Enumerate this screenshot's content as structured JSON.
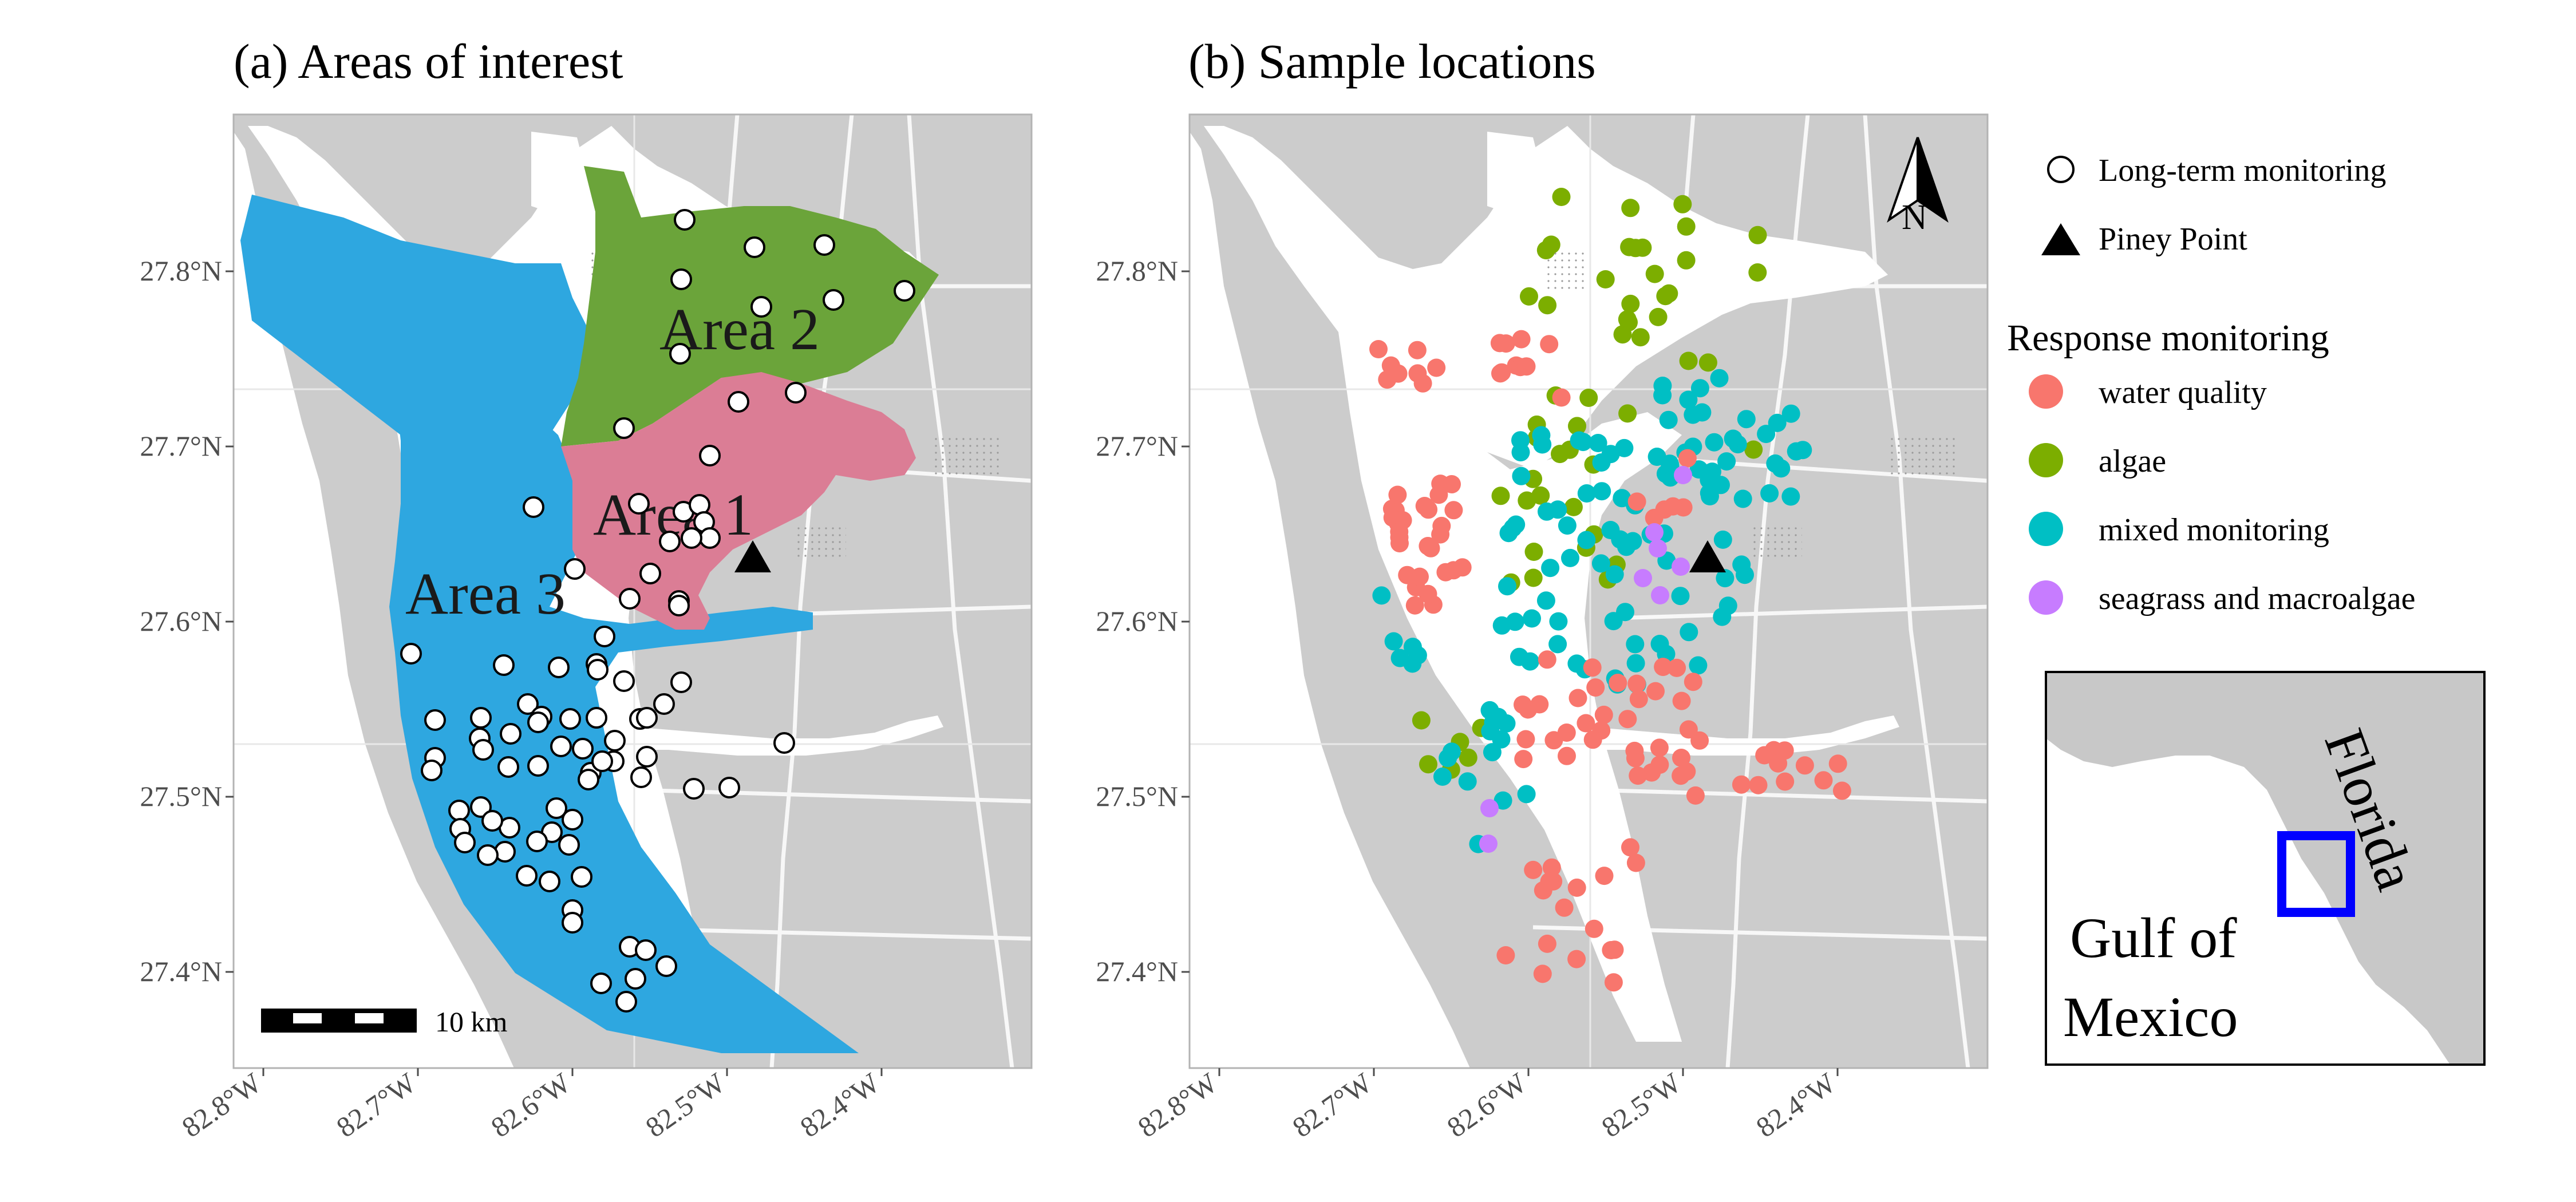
{
  "panels": {
    "a": {
      "title": "(a) Areas of interest"
    },
    "b": {
      "title": "(b) Sample locations"
    }
  },
  "axes": {
    "y_ticks": [
      "27.8°N",
      "27.7°N",
      "27.6°N",
      "27.5°N",
      "27.4°N"
    ],
    "x_ticks": [
      "82.8°W",
      "82.7°W",
      "82.6°W",
      "82.5°W",
      "82.4°W"
    ]
  },
  "area_labels": [
    "Area 1",
    "Area 2",
    "Area 3"
  ],
  "scale_bar": {
    "label": "10 km"
  },
  "north_arrow": {
    "label": "N"
  },
  "legend": {
    "markers": [
      {
        "label": "Long-term monitoring",
        "shape": "circle-open"
      },
      {
        "label": "Piney Point",
        "shape": "triangle-filled"
      }
    ],
    "response_title": "Response monitoring",
    "response": [
      {
        "label": "water quality",
        "color": "#F8766D"
      },
      {
        "label": "algae",
        "color": "#7CAE00"
      },
      {
        "label": "mixed monitoring",
        "color": "#00BFC4"
      },
      {
        "label": "seagrass and macroalgae",
        "color": "#C77CFF"
      }
    ]
  },
  "inset": {
    "labels": [
      "Florida",
      "Gulf of",
      "Mexico"
    ],
    "box_color": "#0000ff"
  },
  "colors": {
    "land": "#cccccc",
    "water": "#ffffff",
    "area1": "#DB7D95",
    "area2": "#6BA43A",
    "area3": "#2EA7E0",
    "piney_point": "#000000"
  }
}
